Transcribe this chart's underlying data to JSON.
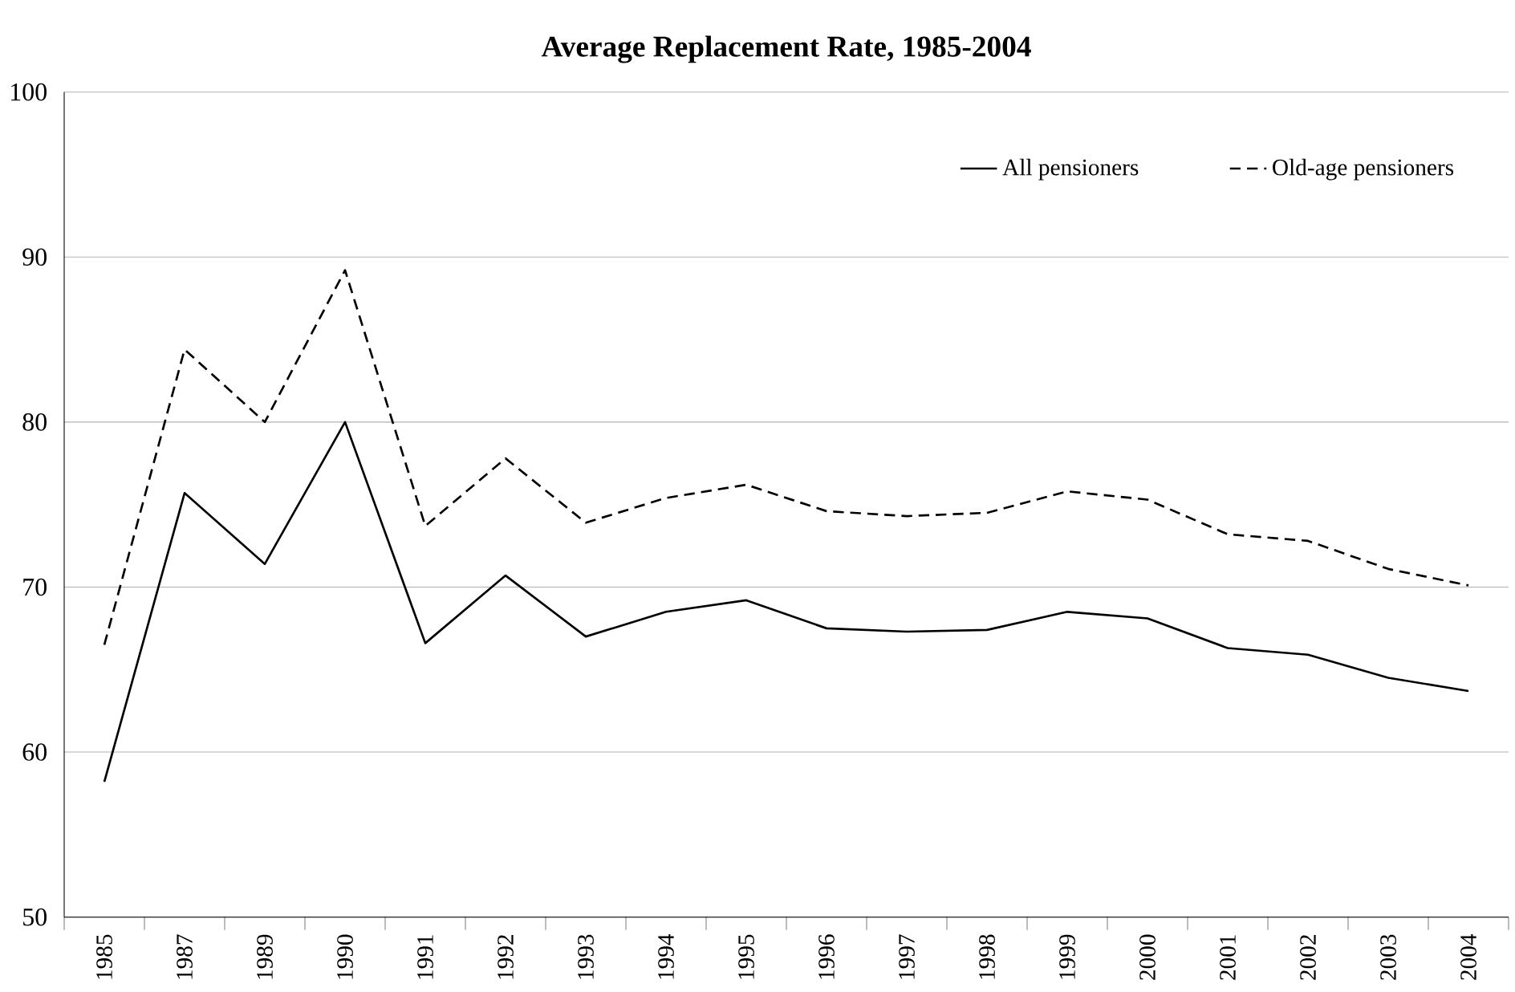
{
  "chart_data": {
    "type": "line",
    "title": "Average Replacement Rate, 1985-2004",
    "categories": [
      "1985",
      "1987",
      "1989",
      "1990",
      "1991",
      "1992",
      "1993",
      "1994",
      "1995",
      "1996",
      "1997",
      "1998",
      "1999",
      "2000",
      "2001",
      "2002",
      "2003",
      "2004"
    ],
    "series": [
      {
        "name": "All pensioners",
        "color": "#000000",
        "line_style": "solid",
        "values": [
          58.2,
          75.7,
          71.4,
          80.0,
          66.6,
          70.7,
          67.0,
          68.5,
          69.2,
          67.5,
          67.3,
          67.4,
          68.5,
          68.1,
          66.3,
          65.9,
          64.5,
          63.7
        ]
      },
      {
        "name": "Old-age pensioners",
        "color": "#000000",
        "line_style": "dashed",
        "values": [
          66.5,
          84.4,
          80.0,
          89.2,
          73.7,
          77.8,
          73.9,
          75.4,
          76.2,
          74.6,
          74.3,
          74.5,
          75.8,
          75.3,
          73.2,
          72.8,
          71.1,
          70.1
        ]
      }
    ],
    "ylim": [
      50,
      100
    ],
    "yticks": [
      50,
      60,
      70,
      80,
      90,
      100
    ],
    "grid": "y",
    "legend": "top right",
    "marker": "none"
  }
}
